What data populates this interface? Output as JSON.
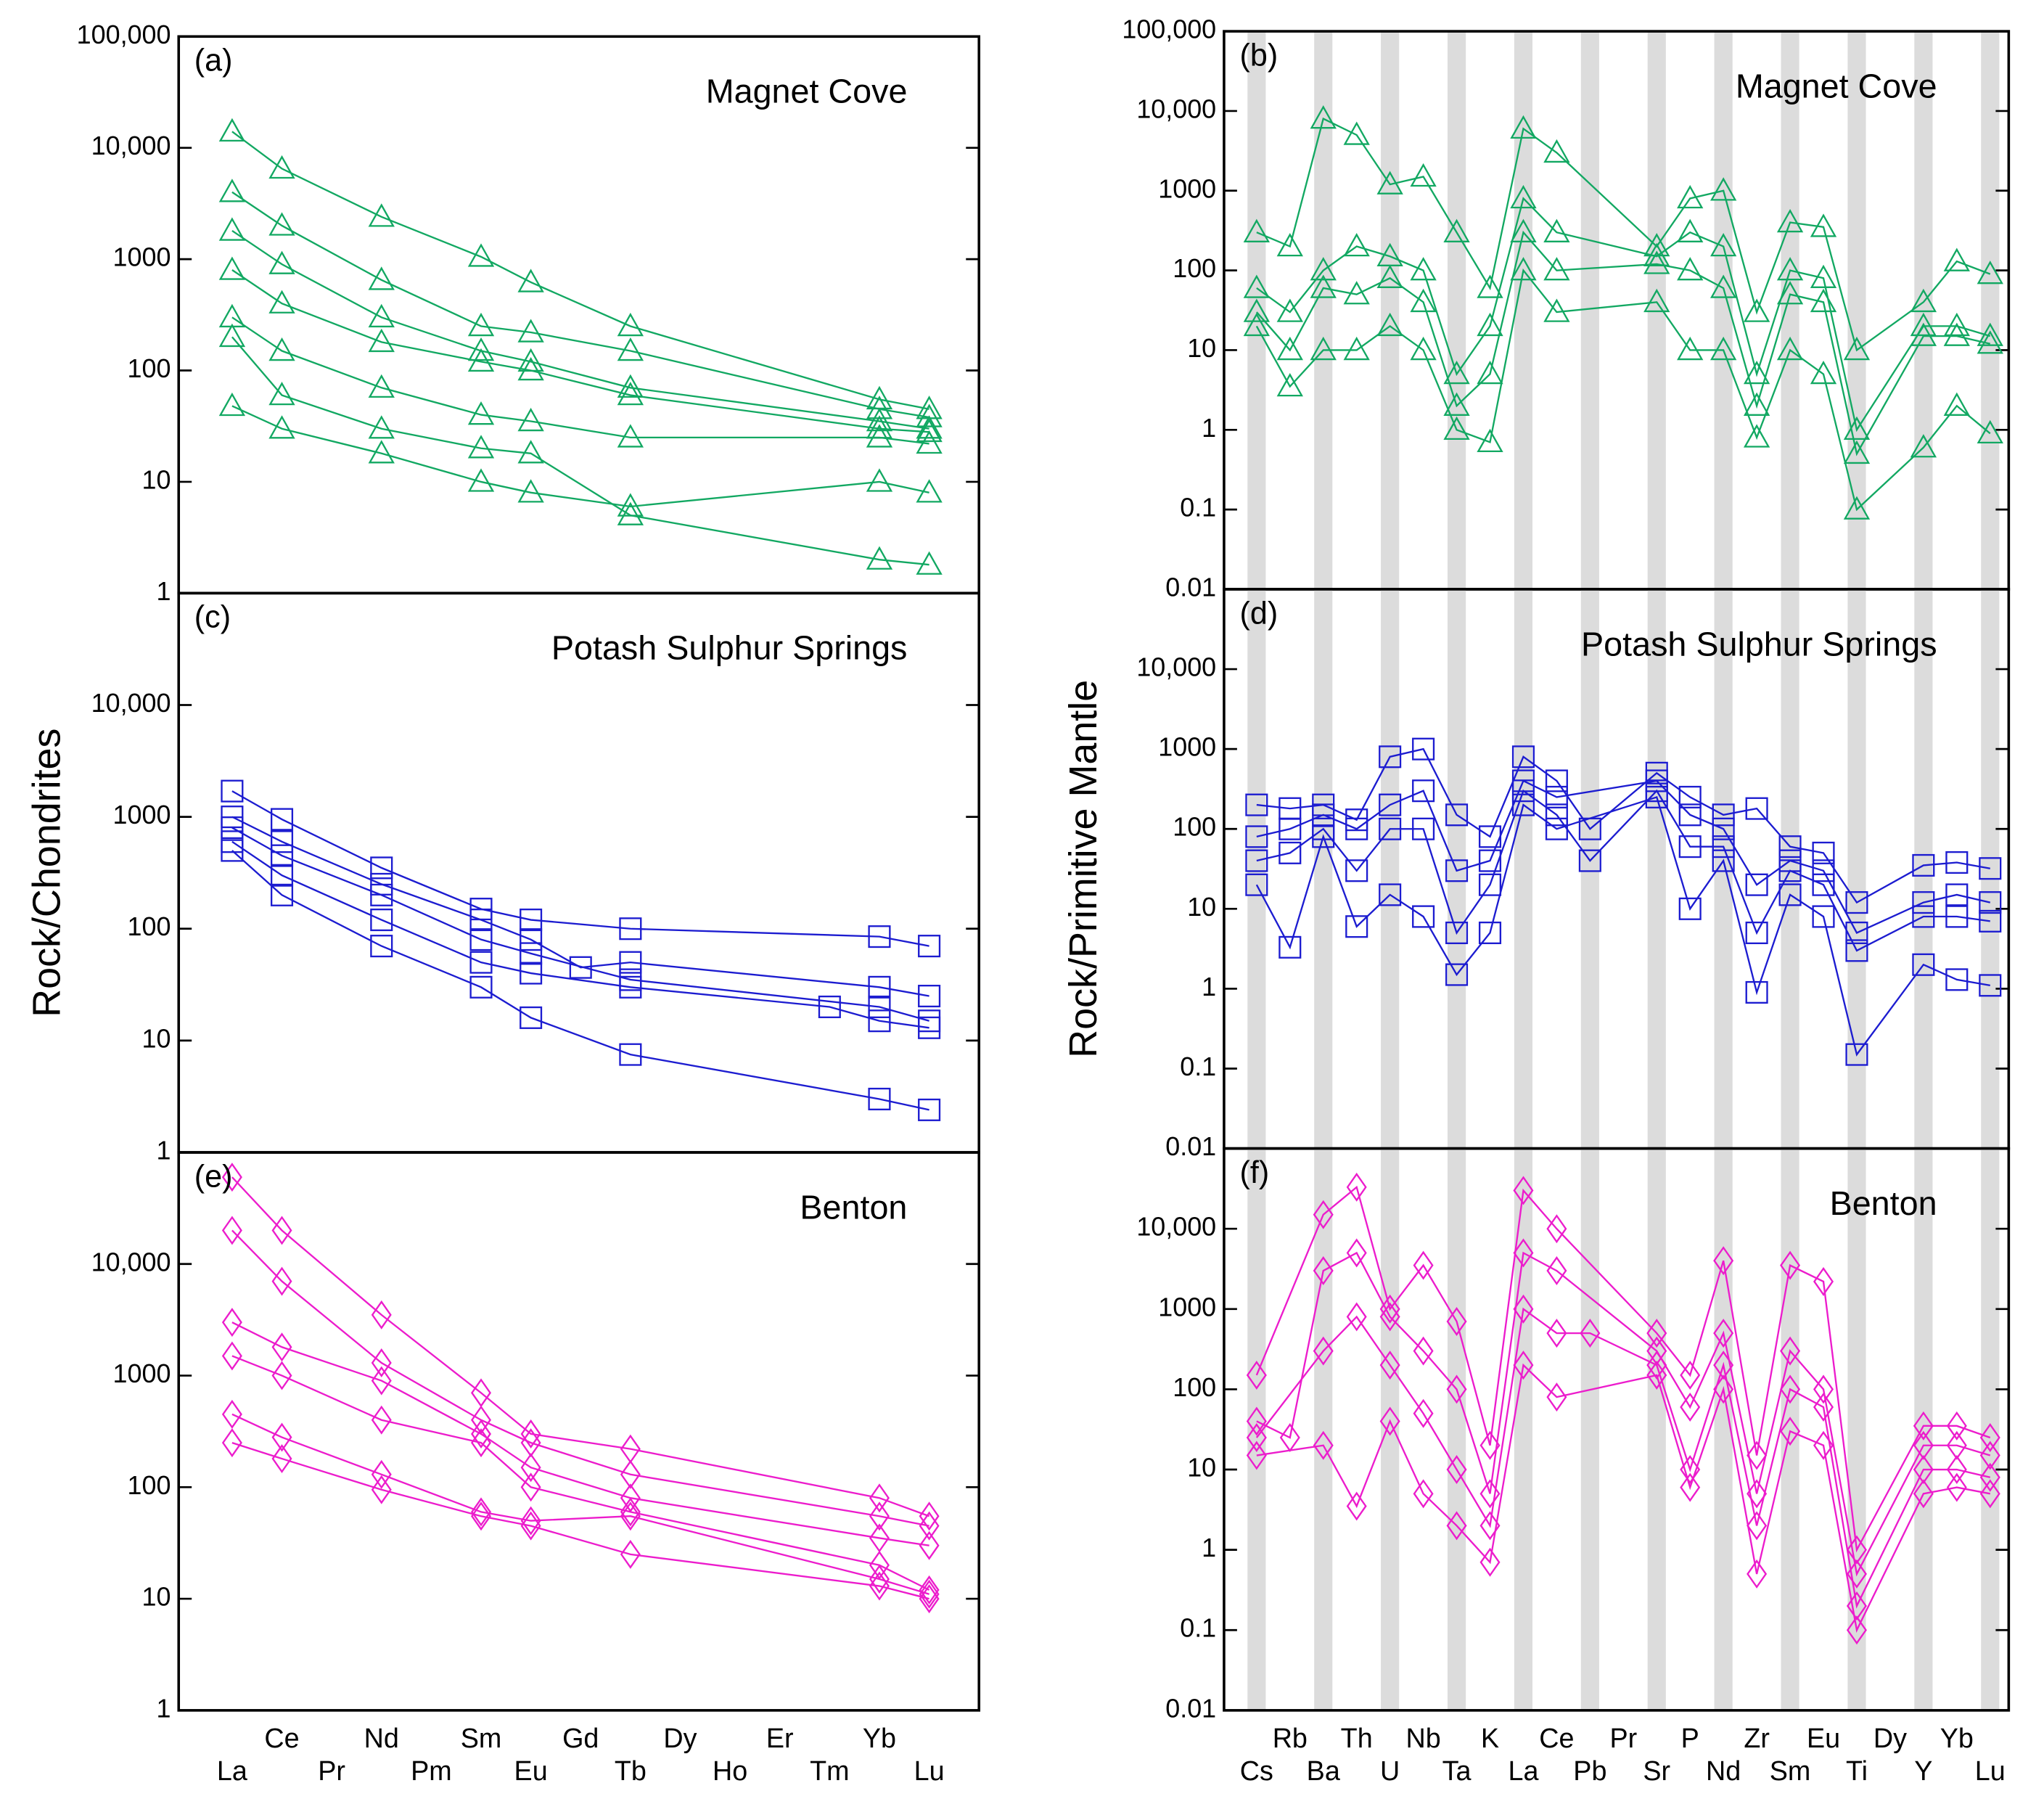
{
  "chart_data": [
    {
      "type": "line",
      "panel_label": "(a)",
      "title": "Magnet Cove",
      "log_y": true,
      "connect_gaps": true,
      "marker": "triangle",
      "color": "#12a862",
      "ylim": [
        1,
        100000
      ],
      "yticks": [
        1,
        10,
        100,
        1000,
        {
          "value": 10000,
          "label": "10,000"
        },
        {
          "value": 100000,
          "label": "100,000"
        }
      ],
      "series": [
        {
          "values": [
            14000,
            6500,
            null,
            2400,
            null,
            1050,
            620,
            null,
            250,
            null,
            null,
            null,
            null,
            55,
            45
          ]
        },
        {
          "values": [
            4000,
            2000,
            null,
            650,
            null,
            250,
            220,
            null,
            150,
            null,
            null,
            null,
            null,
            45,
            38
          ]
        },
        {
          "values": [
            1800,
            900,
            null,
            300,
            null,
            150,
            120,
            null,
            70,
            null,
            null,
            null,
            null,
            35,
            30
          ]
        },
        {
          "values": [
            800,
            400,
            null,
            180,
            null,
            120,
            100,
            null,
            60,
            null,
            null,
            null,
            null,
            30,
            28
          ]
        },
        {
          "values": [
            300,
            150,
            null,
            70,
            null,
            40,
            35,
            null,
            25,
            null,
            null,
            null,
            null,
            25,
            22
          ]
        },
        {
          "values": [
            48,
            30,
            null,
            18,
            null,
            10,
            8,
            null,
            6,
            null,
            null,
            null,
            null,
            10,
            8
          ]
        },
        {
          "values": [
            200,
            60,
            null,
            30,
            null,
            20,
            18,
            null,
            5,
            null,
            null,
            null,
            null,
            2,
            1.8
          ]
        }
      ]
    },
    {
      "type": "line",
      "panel_label": "(b)",
      "title": "Magnet Cove",
      "log_y": true,
      "connect_gaps": true,
      "marker": "triangle",
      "color": "#12a862",
      "ylim": [
        0.01,
        100000
      ],
      "yticks": [
        0.01,
        0.1,
        1,
        10,
        100,
        1000,
        {
          "value": 10000,
          "label": "10,000"
        },
        {
          "value": 100000,
          "label": "100,000"
        }
      ],
      "series": [
        {
          "values": [
            300,
            200,
            8000,
            5000,
            1200,
            1500,
            300,
            60,
            6000,
            3000,
            null,
            null,
            200,
            800,
            1000,
            30,
            400,
            350,
            10,
            null,
            40,
            130,
            90
          ]
        },
        {
          "values": [
            60,
            30,
            100,
            200,
            150,
            100,
            5,
            20,
            800,
            300,
            null,
            null,
            150,
            300,
            200,
            5,
            100,
            80,
            1,
            null,
            20,
            20,
            15
          ]
        },
        {
          "values": [
            30,
            10,
            60,
            50,
            80,
            40,
            2,
            5,
            300,
            100,
            null,
            null,
            120,
            100,
            60,
            2,
            50,
            40,
            0.5,
            null,
            15,
            15,
            12
          ]
        },
        {
          "values": [
            20,
            3.5,
            10,
            10,
            20,
            10,
            1,
            0.7,
            100,
            30,
            null,
            null,
            40,
            10,
            10,
            0.8,
            10,
            5,
            0.1,
            null,
            0.6,
            2,
            0.9
          ]
        }
      ]
    },
    {
      "type": "line",
      "panel_label": "(c)",
      "title": "Potash Sulphur Springs",
      "ylabel": "Rock/Chondrites",
      "log_y": true,
      "connect_gaps": true,
      "marker": "square",
      "color": "#1c1cd0",
      "ylim": [
        1,
        100000
      ],
      "yticks": [
        1,
        10,
        100,
        1000,
        {
          "value": 10000,
          "label": "10,000"
        }
      ],
      "series": [
        {
          "values": [
            1700,
            950,
            null,
            350,
            null,
            150,
            120,
            null,
            100,
            null,
            null,
            null,
            null,
            85,
            70
          ]
        },
        {
          "values": [
            1000,
            600,
            null,
            250,
            null,
            120,
            80,
            45,
            50,
            null,
            null,
            null,
            null,
            30,
            25
          ]
        },
        {
          "values": [
            800,
            450,
            null,
            200,
            null,
            80,
            60,
            null,
            35,
            null,
            null,
            null,
            null,
            20,
            15
          ]
        },
        {
          "values": [
            600,
            300,
            null,
            120,
            null,
            50,
            40,
            null,
            30,
            null,
            null,
            null,
            20,
            15,
            13
          ]
        },
        {
          "values": [
            500,
            200,
            null,
            70,
            null,
            30,
            16,
            null,
            7.5,
            null,
            null,
            null,
            null,
            3,
            2.4
          ]
        }
      ]
    },
    {
      "type": "line",
      "panel_label": "(d)",
      "title": "Potash Sulphur Springs",
      "ylabel": "Rock/Primitive Mantle",
      "log_y": true,
      "connect_gaps": true,
      "marker": "square",
      "color": "#1c1cd0",
      "ylim": [
        0.01,
        100000
      ],
      "yticks": [
        0.01,
        0.1,
        1,
        10,
        100,
        1000,
        {
          "value": 10000,
          "label": "10,000"
        }
      ],
      "series": [
        {
          "values": [
            200,
            180,
            200,
            130,
            800,
            1000,
            150,
            80,
            800,
            400,
            100,
            null,
            500,
            250,
            150,
            180,
            60,
            50,
            12,
            null,
            35,
            38,
            32
          ]
        },
        {
          "values": [
            80,
            100,
            150,
            100,
            200,
            300,
            30,
            40,
            400,
            250,
            null,
            null,
            400,
            150,
            100,
            20,
            40,
            30,
            5,
            null,
            12,
            15,
            12
          ]
        },
        {
          "values": [
            40,
            50,
            100,
            30,
            100,
            100,
            5,
            20,
            300,
            150,
            40,
            null,
            300,
            60,
            60,
            5,
            30,
            20,
            3,
            null,
            8,
            8,
            7
          ]
        },
        {
          "values": [
            20,
            3.3,
            80,
            6,
            15,
            8,
            1.5,
            5,
            200,
            100,
            null,
            null,
            250,
            10,
            40,
            0.9,
            15,
            8,
            0.15,
            null,
            2,
            1.3,
            1.1
          ]
        }
      ]
    },
    {
      "type": "line",
      "panel_label": "(e)",
      "title": "Benton",
      "log_y": true,
      "connect_gaps": true,
      "marker": "diamond",
      "color": "#ec1ccc",
      "ylim": [
        1,
        100000
      ],
      "yticks": [
        1,
        10,
        100,
        1000,
        {
          "value": 10000,
          "label": "10,000"
        }
      ],
      "categories": [
        "La",
        "Ce",
        "Pr",
        "Nd",
        "Pm",
        "Sm",
        "Eu",
        "Gd",
        "Tb",
        "Dy",
        "Ho",
        "Er",
        "Tm",
        "Yb",
        "Lu"
      ],
      "series": [
        {
          "values": [
            60000,
            20000,
            null,
            3500,
            null,
            700,
            300,
            null,
            220,
            null,
            null,
            null,
            null,
            80,
            55
          ]
        },
        {
          "values": [
            20000,
            7000,
            null,
            1300,
            null,
            400,
            250,
            null,
            130,
            null,
            null,
            null,
            null,
            55,
            45
          ]
        },
        {
          "values": [
            3000,
            1800,
            null,
            900,
            null,
            300,
            150,
            null,
            80,
            null,
            null,
            null,
            null,
            35,
            30
          ]
        },
        {
          "values": [
            1500,
            1000,
            null,
            400,
            null,
            250,
            100,
            null,
            60,
            null,
            null,
            null,
            null,
            20,
            12
          ]
        },
        {
          "values": [
            450,
            280,
            null,
            130,
            null,
            60,
            50,
            null,
            55,
            null,
            null,
            null,
            null,
            15,
            11
          ]
        },
        {
          "values": [
            250,
            180,
            null,
            95,
            null,
            55,
            45,
            null,
            25,
            null,
            null,
            null,
            null,
            13,
            10
          ]
        }
      ]
    },
    {
      "type": "line",
      "panel_label": "(f)",
      "title": "Benton",
      "log_y": true,
      "connect_gaps": true,
      "marker": "diamond",
      "color": "#ec1ccc",
      "ylim": [
        0.01,
        100000
      ],
      "yticks": [
        0.01,
        0.1,
        1,
        10,
        100,
        1000,
        {
          "value": 10000,
          "label": "10,000"
        }
      ],
      "categories": [
        "Cs",
        "Rb",
        "Ba",
        "Th",
        "U",
        "Nb",
        "Ta",
        "K",
        "La",
        "Ce",
        "Pb",
        "Pr",
        "Sr",
        "P",
        "Nd",
        "Zr",
        "Sm",
        "Eu",
        "Ti",
        "Dy",
        "Y",
        "Yb",
        "Lu"
      ],
      "series": [
        {
          "values": [
            150,
            null,
            15000,
            33000,
            1000,
            3500,
            700,
            20,
            30000,
            10000,
            null,
            null,
            500,
            150,
            4000,
            15,
            3500,
            2200,
            1,
            null,
            35,
            35,
            25
          ]
        },
        {
          "values": [
            40,
            25,
            3000,
            5000,
            800,
            300,
            100,
            5,
            5000,
            3000,
            null,
            null,
            300,
            60,
            500,
            5,
            300,
            100,
            0.5,
            null,
            20,
            20,
            15
          ]
        },
        {
          "values": [
            25,
            null,
            300,
            800,
            200,
            50,
            10,
            2,
            1000,
            500,
            500,
            null,
            200,
            10,
            200,
            2,
            100,
            60,
            0.2,
            null,
            10,
            10,
            8
          ]
        },
        {
          "values": [
            15,
            null,
            20,
            3.5,
            40,
            5,
            2,
            0.7,
            200,
            80,
            null,
            null,
            150,
            6,
            100,
            0.5,
            30,
            20,
            0.1,
            null,
            5,
            6,
            5
          ]
        }
      ]
    }
  ]
}
